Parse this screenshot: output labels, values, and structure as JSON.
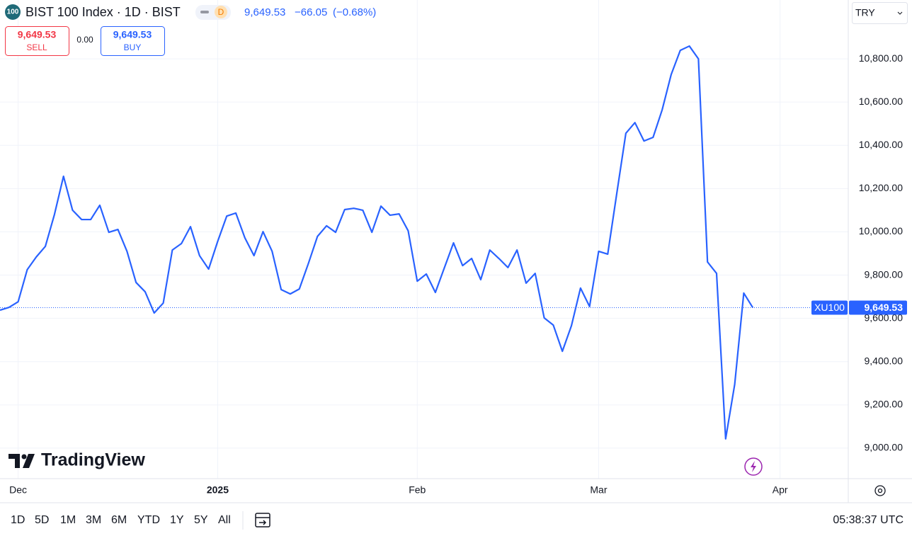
{
  "header": {
    "badge": "100",
    "title": "BIST 100 Index · 1D · BIST",
    "interval_badge": "D",
    "price": "9,649.53",
    "change": "−66.05",
    "change_percent": "(−0.68%)",
    "currency": "TRY"
  },
  "trade": {
    "sell_price": "9,649.53",
    "sell": "SELL",
    "spread": "0.00",
    "buy_price": "9,649.53",
    "buy": "BUY"
  },
  "logo": "TradingView",
  "toolbar": {
    "ranges": [
      "1D",
      "5D",
      "1M",
      "3M",
      "6M",
      "YTD",
      "1Y",
      "5Y",
      "All"
    ],
    "time": "05:38:37 UTC"
  },
  "chart_data": {
    "type": "line",
    "categories": [
      null,
      null,
      "Dec",
      null,
      null,
      null,
      null,
      null,
      null,
      null,
      null,
      null,
      null,
      null,
      null,
      null,
      null,
      null,
      null,
      null,
      null,
      null,
      null,
      null,
      "2025",
      null,
      null,
      null,
      null,
      null,
      null,
      null,
      null,
      null,
      null,
      null,
      null,
      null,
      null,
      null,
      null,
      null,
      null,
      null,
      null,
      null,
      "Feb",
      null,
      null,
      null,
      null,
      null,
      null,
      null,
      null,
      null,
      null,
      null,
      null,
      null,
      null,
      null,
      null,
      null,
      null,
      null,
      "Mar",
      null,
      null,
      null,
      null,
      null,
      null,
      null,
      null,
      null,
      null,
      null,
      null,
      null,
      null,
      null,
      null,
      null,
      null,
      null,
      "Apr"
    ],
    "series": [
      {
        "name": "XU100",
        "color": "#2962ff",
        "values": [
          9638,
          9651,
          9677,
          9825,
          9884,
          9933,
          10080,
          10257,
          10100,
          10057,
          10057,
          10123,
          9998,
          10011,
          9910,
          9766,
          9723,
          9625,
          9671,
          9916,
          9946,
          10024,
          9890,
          9828,
          9956,
          10073,
          10087,
          9972,
          9890,
          10001,
          9910,
          9733,
          9713,
          9736,
          9854,
          9979,
          10028,
          9998,
          10103,
          10109,
          10100,
          9998,
          10119,
          10077,
          10083,
          10005,
          9772,
          9805,
          9720,
          9835,
          9949,
          9844,
          9877,
          9779,
          9916,
          9877,
          9835,
          9916,
          9763,
          9808,
          9602,
          9569,
          9448,
          9566,
          9740,
          9655,
          9910,
          9897,
          10178,
          10456,
          10505,
          10420,
          10437,
          10564,
          10728,
          10839,
          10859,
          10800,
          9861,
          9808,
          9043,
          9295,
          9717,
          9649.53,
          null,
          null,
          null
        ]
      }
    ],
    "last_price": {
      "value": 9649.53,
      "label": "9,649.53"
    },
    "ylim": [
      8859,
      11072
    ],
    "yticks": [
      {
        "value": 9000,
        "label": "9,000.00"
      },
      {
        "value": 9200,
        "label": "9,200.00"
      },
      {
        "value": 9400,
        "label": "9,400.00"
      },
      {
        "value": 9600,
        "label": "9,600.00"
      },
      {
        "value": 9800,
        "label": "9,800.00"
      },
      {
        "value": 10000,
        "label": "10,000.00"
      },
      {
        "value": 10200,
        "label": "10,200.00"
      },
      {
        "value": 10400,
        "label": "10,400.00"
      },
      {
        "value": 10600,
        "label": "10,600.00"
      },
      {
        "value": 10800,
        "label": "10,800.00"
      }
    ],
    "grid": true
  }
}
